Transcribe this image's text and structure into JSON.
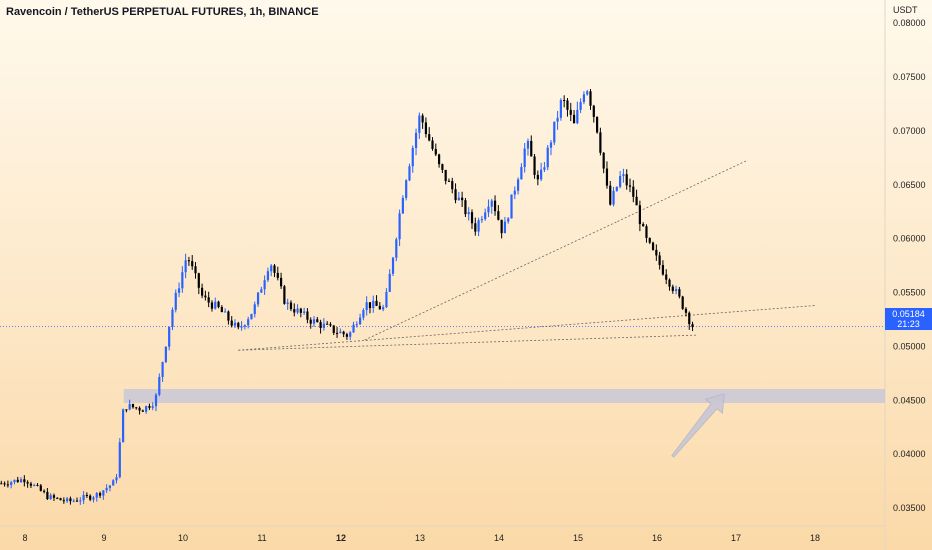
{
  "chart_data": {
    "type": "candlestick",
    "title": "Ravencoin / TetherUS PERPETUAL FUTURES, 1h, BINANCE",
    "currency": "USDT",
    "ylim": [
      0.0325,
      0.0803
    ],
    "y_ticks": [
      "0.08000",
      "0.07500",
      "0.07000",
      "0.06500",
      "0.06000",
      "0.05500",
      "0.05000",
      "0.04500",
      "0.04000",
      "0.03500"
    ],
    "x_ticks": [
      {
        "label": "8",
        "day": 8
      },
      {
        "label": "9",
        "day": 9
      },
      {
        "label": "10",
        "day": 10
      },
      {
        "label": "11",
        "day": 11
      },
      {
        "label": "12",
        "day": 12,
        "bold": true
      },
      {
        "label": "13",
        "day": 13
      },
      {
        "label": "14",
        "day": 14
      },
      {
        "label": "15",
        "day": 15
      },
      {
        "label": "16",
        "day": 16
      },
      {
        "label": "17",
        "day": 17
      },
      {
        "label": "18",
        "day": 18
      }
    ],
    "last_price": "0.05184",
    "countdown": "21:23",
    "price_keypoints": [
      {
        "day": 7.7,
        "price": 0.0373
      },
      {
        "day": 8.0,
        "price": 0.0377
      },
      {
        "day": 8.3,
        "price": 0.036
      },
      {
        "day": 8.55,
        "price": 0.0356
      },
      {
        "day": 8.9,
        "price": 0.0362
      },
      {
        "day": 9.15,
        "price": 0.0375
      },
      {
        "day": 9.25,
        "price": 0.0445
      },
      {
        "day": 9.5,
        "price": 0.0442
      },
      {
        "day": 9.65,
        "price": 0.045
      },
      {
        "day": 9.85,
        "price": 0.053
      },
      {
        "day": 10.05,
        "price": 0.0585
      },
      {
        "day": 10.25,
        "price": 0.0545
      },
      {
        "day": 10.45,
        "price": 0.0535
      },
      {
        "day": 10.7,
        "price": 0.0515
      },
      {
        "day": 10.9,
        "price": 0.0535
      },
      {
        "day": 11.1,
        "price": 0.058
      },
      {
        "day": 11.3,
        "price": 0.054
      },
      {
        "day": 11.6,
        "price": 0.0525
      },
      {
        "day": 11.9,
        "price": 0.0515
      },
      {
        "day": 12.1,
        "price": 0.051
      },
      {
        "day": 12.3,
        "price": 0.054
      },
      {
        "day": 12.55,
        "price": 0.0535
      },
      {
        "day": 12.8,
        "price": 0.065
      },
      {
        "day": 13.0,
        "price": 0.0715
      },
      {
        "day": 13.25,
        "price": 0.0665
      },
      {
        "day": 13.5,
        "price": 0.0635
      },
      {
        "day": 13.7,
        "price": 0.061
      },
      {
        "day": 13.9,
        "price": 0.064
      },
      {
        "day": 14.05,
        "price": 0.0605
      },
      {
        "day": 14.35,
        "price": 0.069
      },
      {
        "day": 14.5,
        "price": 0.065
      },
      {
        "day": 14.8,
        "price": 0.073
      },
      {
        "day": 14.95,
        "price": 0.0705
      },
      {
        "day": 15.1,
        "price": 0.0745
      },
      {
        "day": 15.25,
        "price": 0.07
      },
      {
        "day": 15.4,
        "price": 0.063
      },
      {
        "day": 15.55,
        "price": 0.066
      },
      {
        "day": 15.7,
        "price": 0.064
      },
      {
        "day": 15.85,
        "price": 0.06
      },
      {
        "day": 16.0,
        "price": 0.058
      },
      {
        "day": 16.2,
        "price": 0.0555
      },
      {
        "day": 16.35,
        "price": 0.0535
      },
      {
        "day": 16.45,
        "price": 0.0518
      }
    ],
    "annotations": {
      "support_zone": {
        "day_start": 9.25,
        "day_end": 19.0,
        "price_top": 0.04605,
        "price_bottom": 0.04475
      },
      "trend_lines": [
        {
          "day1": 10.7,
          "price1": 0.04965,
          "day2": 16.5,
          "price2": 0.05105
        },
        {
          "day1": 10.7,
          "price1": 0.04965,
          "day2": 18.0,
          "price2": 0.0538
        },
        {
          "day1": 12.3,
          "price1": 0.0506,
          "day2": 15.5,
          "price2": 0.0616
        },
        {
          "day1": 15.5,
          "price1": 0.0616,
          "day2": 17.15,
          "price2": 0.0673
        }
      ],
      "last_price_line": {
        "price": 0.05184
      },
      "arrow": {
        "day_tail": 16.2,
        "price_tail": 0.0398,
        "day_head": 16.85,
        "price_head": 0.0456
      }
    },
    "colors": {
      "up": "#2962ff",
      "down": "#000000",
      "zone": "#c9c8d8",
      "arrow": "#c8c7d6",
      "trend": "#666666",
      "price_line": "#2962ff"
    }
  }
}
